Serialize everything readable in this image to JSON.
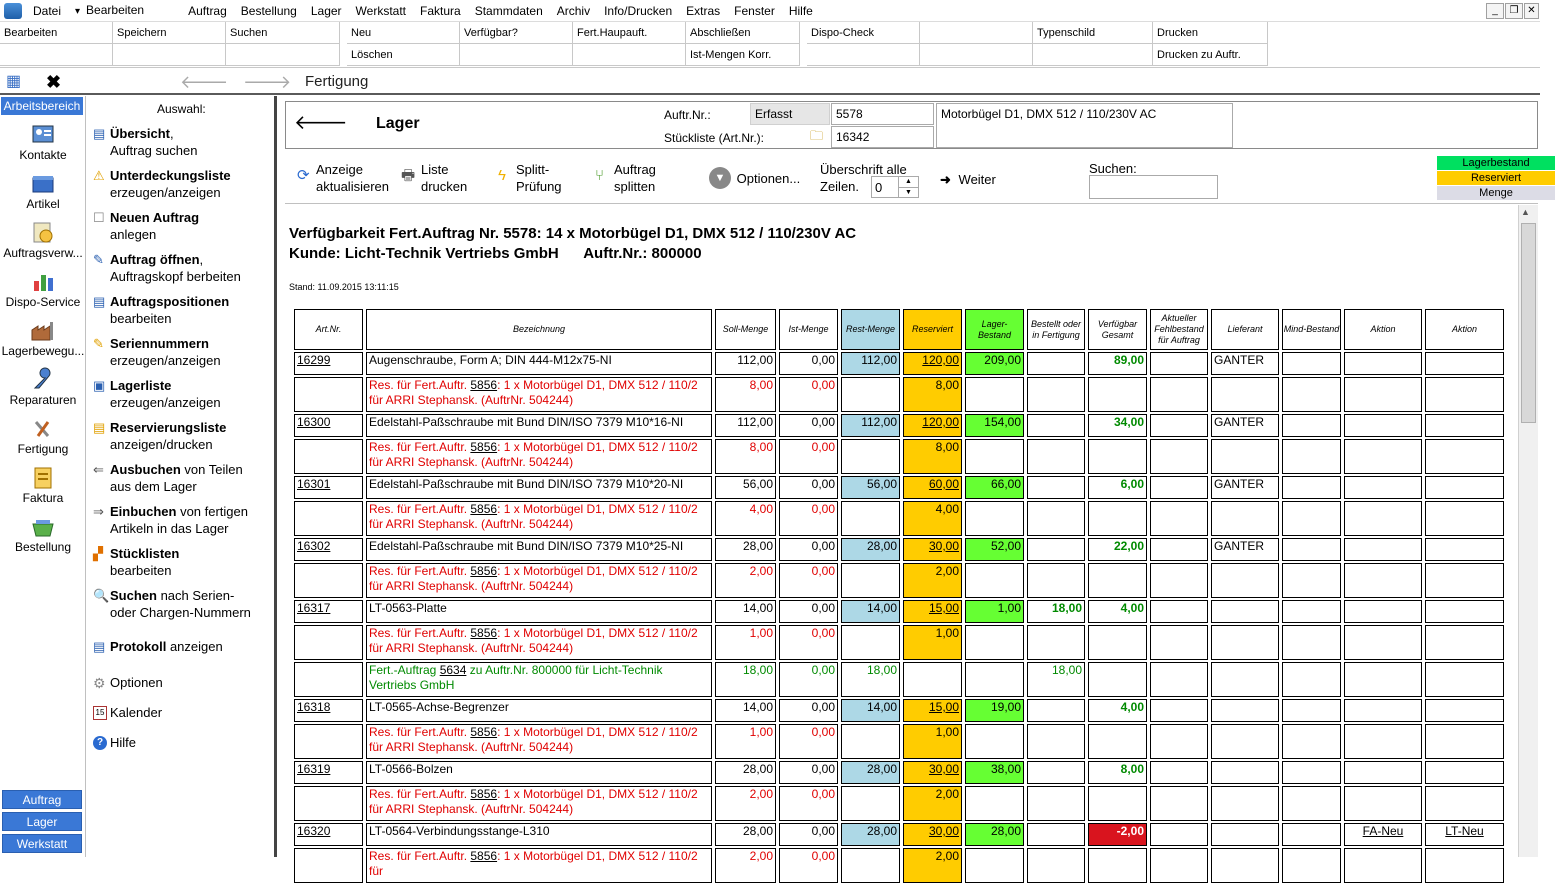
{
  "menubar": {
    "items": [
      "Datei",
      "Bearbeiten",
      "Auftrag",
      "Bestellung",
      "Lager",
      "Werkstatt",
      "Faktura",
      "Stammdaten",
      "Archiv",
      "Info/Drucken",
      "Extras",
      "Fenster",
      "Hilfe"
    ]
  },
  "toolbar": {
    "cells": [
      "Bearbeiten",
      "Speichern",
      "Suchen",
      "Neu",
      "Verfügbar?",
      "Fert.Haupauft.",
      "Abschließen",
      "Dispo-Check",
      "Typenschild",
      "Drucken",
      "Löschen",
      "Ist-Mengen Korr.",
      "Drucken zu Auftr."
    ]
  },
  "nav": {
    "title": "Fertigung"
  },
  "sidebar": {
    "head": "Arbeitsbereich",
    "items": [
      "Kontakte",
      "Artikel",
      "Auftragsverw...",
      "Dispo-Service",
      "Lagerbewegu...",
      "Reparaturen",
      "Fertigung",
      "Faktura",
      "Bestellung"
    ],
    "bottom": [
      "Auftrag",
      "Lager",
      "Werkstatt"
    ]
  },
  "mid": {
    "title": "Auswahl:",
    "actions": [
      {
        "b": "Übersicht",
        "t": ",",
        "l2": "Auftrag suchen"
      },
      {
        "b": "Unterdeckungsliste",
        "t": "",
        "l2": "erzeugen/anzeigen"
      },
      {
        "b": "Neuen Auftrag",
        "t": "",
        "l2": "anlegen"
      },
      {
        "b": "Auftrag öffnen",
        "t": ",",
        "l2": "Auftragskopf berbeiten"
      },
      {
        "b": "Auftragspositionen",
        "t": "",
        "l2": "bearbeiten"
      },
      {
        "b": "Seriennummern",
        "t": "",
        "l2": "erzeugen/anzeigen"
      },
      {
        "b": "Lagerliste",
        "t": "",
        "l2": "erzeugen/anzeigen"
      },
      {
        "b": "Reservierungsliste",
        "t": "",
        "l2": "anzeigen/drucken"
      },
      {
        "b": "Ausbuchen",
        "t": " von Teilen",
        "l2": "aus dem Lager"
      },
      {
        "b": "Einbuchen",
        "t": " von fertigen",
        "l2": "Artikeln in das Lager"
      },
      {
        "b": "Stücklisten",
        "t": "",
        "l2": "bearbeiten"
      },
      {
        "b": "Suchen",
        "t": " nach Serien-",
        "l2": "oder Chargen-Nummern"
      },
      {
        "b": "Protokoll",
        "t": " anzeigen",
        "l2": ""
      }
    ],
    "plain": [
      "Optionen",
      "Kalender",
      "Hilfe"
    ]
  },
  "header": {
    "lager": "Lager",
    "auftr_label": "Auftr.Nr.:",
    "status": "Erfasst",
    "auftr_nr": "5578",
    "stl_label": "Stückliste (Art.Nr.):",
    "stl_nr": "16342",
    "desc": "Motorbügel D1, DMX 512 / 110/230V AC"
  },
  "actions": {
    "refresh": [
      "Anzeige",
      "aktualisieren"
    ],
    "print": [
      "Liste",
      "drucken"
    ],
    "split": [
      "Splitt-",
      "Prüfung"
    ],
    "splitten": [
      "Auftrag",
      "splitten"
    ],
    "options": "Optionen...",
    "ueb": [
      "Überschrift alle",
      "Zeilen."
    ],
    "ueb_val": "0",
    "weiter": "Weiter",
    "suchen": "Suchen:"
  },
  "legend": [
    {
      "label": "Lagerbestand",
      "color": "#00e060"
    },
    {
      "label": "Reserviert",
      "color": "#ffcc00"
    },
    {
      "label": "Menge",
      "color": "#dcdce6"
    }
  ],
  "report": {
    "title": "Verfügbarkeit Fert.Auftrag Nr. 5578: 14 x Motorbügel D1, DMX 512 / 110/230V AC",
    "kunde": "Kunde: Licht-Technik Vertriebs GmbH      Auftr.Nr.: 800000",
    "stand": "Stand: 11.09.2015 13:11:15",
    "columns": [
      "Art.Nr.",
      "Bezeichnung",
      "Soll-Menge",
      "Ist-Menge",
      "Rest-Menge",
      "Reserviert",
      "Lager-Bestand",
      "Bestellt oder in Fertigung",
      "Verfügbar Gesamt",
      "Aktueller Fehlbestand für Auftrag",
      "Lieferant",
      "Mind-Bestand",
      "Aktion",
      "Aktion"
    ],
    "rows": [
      {
        "type": "main",
        "art": "16299",
        "bez": "Augenschraube, Form A; DIN 444-M12x75-NI",
        "soll": "112,00",
        "ist": "0,00",
        "rest": "112,00",
        "res": "120,00",
        "lager": "209,00",
        "best": "",
        "verf": "89,00",
        "lief": "GANTER"
      },
      {
        "type": "sub",
        "pre": "Res. für Fert.Auftr. ",
        "ref": "5856",
        "post": ": 1 x Motorbügel D1, DMX 512 / 110/2 für ARRI Stephansk. (AuftrNr. 504244)",
        "soll": "8,00",
        "ist": "0,00",
        "res": "8,00"
      },
      {
        "type": "main",
        "art": "16300",
        "bez": "Edelstahl-Paßschraube mit Bund DIN/ISO 7379 M10*16-NI",
        "soll": "112,00",
        "ist": "0,00",
        "rest": "112,00",
        "res": "120,00",
        "lager": "154,00",
        "best": "",
        "verf": "34,00",
        "lief": "GANTER"
      },
      {
        "type": "sub",
        "pre": "Res. für Fert.Auftr. ",
        "ref": "5856",
        "post": ": 1 x Motorbügel D1, DMX 512 / 110/2 für ARRI Stephansk. (AuftrNr. 504244)",
        "soll": "8,00",
        "ist": "0,00",
        "res": "8,00"
      },
      {
        "type": "main",
        "art": "16301",
        "bez": "Edelstahl-Paßschraube mit Bund DIN/ISO 7379 M10*20-NI",
        "soll": "56,00",
        "ist": "0,00",
        "rest": "56,00",
        "res": "60,00",
        "lager": "66,00",
        "best": "",
        "verf": "6,00",
        "lief": "GANTER"
      },
      {
        "type": "sub",
        "pre": "Res. für Fert.Auftr. ",
        "ref": "5856",
        "post": ": 1 x Motorbügel D1, DMX 512 / 110/2 für ARRI Stephansk. (AuftrNr. 504244)",
        "soll": "4,00",
        "ist": "0,00",
        "res": "4,00"
      },
      {
        "type": "main",
        "art": "16302",
        "bez": "Edelstahl-Paßschraube mit Bund DIN/ISO 7379 M10*25-NI",
        "soll": "28,00",
        "ist": "0,00",
        "rest": "28,00",
        "res": "30,00",
        "lager": "52,00",
        "best": "",
        "verf": "22,00",
        "lief": "GANTER"
      },
      {
        "type": "sub",
        "pre": "Res. für Fert.Auftr. ",
        "ref": "5856",
        "post": ": 1 x Motorbügel D1, DMX 512 / 110/2 für ARRI Stephansk. (AuftrNr. 504244)",
        "soll": "2,00",
        "ist": "0,00",
        "res": "2,00"
      },
      {
        "type": "main",
        "art": "16317",
        "bez": "LT-0563-Platte",
        "soll": "14,00",
        "ist": "0,00",
        "rest": "14,00",
        "res": "15,00",
        "lager": "1,00",
        "best": "18,00",
        "verf": "4,00",
        "lief": ""
      },
      {
        "type": "sub",
        "pre": "Res. für Fert.Auftr. ",
        "ref": "5856",
        "post": ": 1 x Motorbügel D1, DMX 512 / 110/2 für ARRI Stephansk. (AuftrNr. 504244)",
        "soll": "1,00",
        "ist": "0,00",
        "res": "1,00"
      },
      {
        "type": "fert",
        "pre": "Fert.-Auftrag ",
        "ref": "5634",
        "post": " zu Auftr.Nr. 800000 für Licht-Technik Vertriebs GmbH",
        "soll": "18,00",
        "ist": "0,00",
        "rest": "18,00",
        "best": "18,00"
      },
      {
        "type": "main",
        "art": "16318",
        "bez": "LT-0565-Achse-Begrenzer",
        "soll": "14,00",
        "ist": "0,00",
        "rest": "14,00",
        "res": "15,00",
        "lager": "19,00",
        "best": "",
        "verf": "4,00",
        "lief": ""
      },
      {
        "type": "sub",
        "pre": "Res. für Fert.Auftr. ",
        "ref": "5856",
        "post": ": 1 x Motorbügel D1, DMX 512 / 110/2 für ARRI Stephansk. (AuftrNr. 504244)",
        "soll": "1,00",
        "ist": "0,00",
        "res": "1,00"
      },
      {
        "type": "main",
        "art": "16319",
        "bez": "LT-0566-Bolzen",
        "soll": "28,00",
        "ist": "0,00",
        "rest": "28,00",
        "res": "30,00",
        "lager": "38,00",
        "best": "",
        "verf": "8,00",
        "lief": ""
      },
      {
        "type": "sub",
        "pre": "Res. für Fert.Auftr. ",
        "ref": "5856",
        "post": ": 1 x Motorbügel D1, DMX 512 / 110/2 für ARRI Stephansk. (AuftrNr. 504244)",
        "soll": "2,00",
        "ist": "0,00",
        "res": "2,00"
      },
      {
        "type": "main",
        "art": "16320",
        "bez": "LT-0564-Verbindungsstange-L310",
        "soll": "28,00",
        "ist": "0,00",
        "rest": "28,00",
        "res": "30,00",
        "lager": "28,00",
        "best": "",
        "verf": "-2,00",
        "neg": true,
        "lief": "",
        "a1": "FA-Neu",
        "a2": "LT-Neu"
      },
      {
        "type": "sub",
        "pre": "Res. für Fert.Auftr. ",
        "ref": "5856",
        "post": ": 1 x Motorbügel D1, DMX 512 / 110/2 für",
        "soll": "2,00",
        "ist": "0,00",
        "res": "2,00"
      }
    ]
  }
}
